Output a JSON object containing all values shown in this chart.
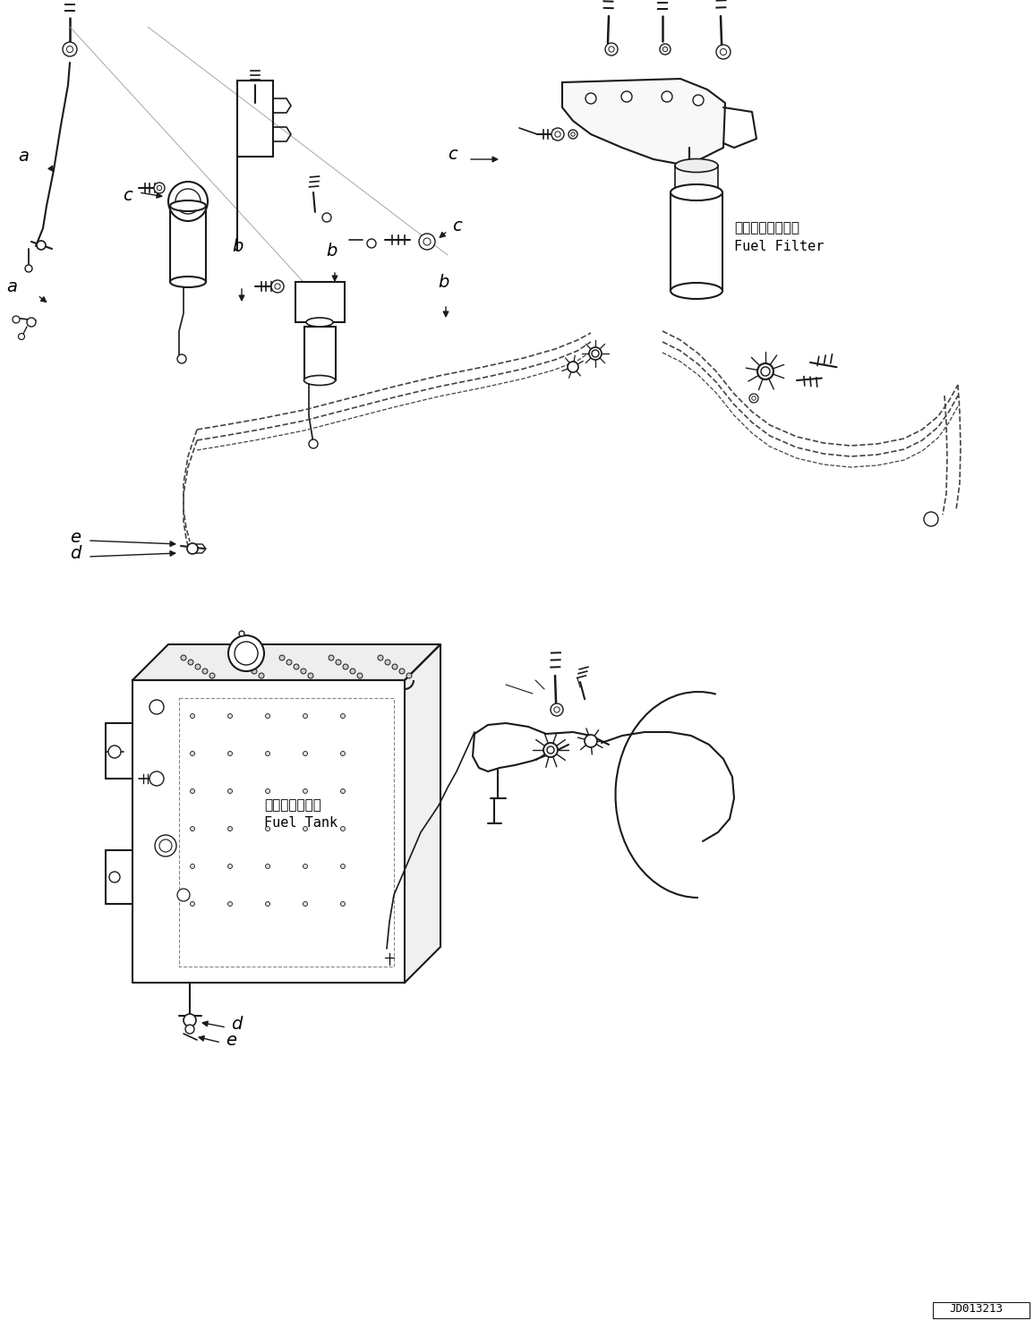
{
  "bg_color": "#ffffff",
  "line_color": "#1a1a1a",
  "dashed_color": "#444444",
  "fig_width": 11.55,
  "fig_height": 14.85,
  "doc_id": "JD013213",
  "label_fuel_filter_jp": "フェエルフィルタ",
  "label_fuel_filter_en": "Fuel Filter",
  "label_fuel_tank_jp": "フェエルタンク",
  "label_fuel_tank_en": "Fuel Tank",
  "font_size_label": 14,
  "font_size_annotation": 10,
  "font_size_docid": 9,
  "font_size_callout": 11
}
